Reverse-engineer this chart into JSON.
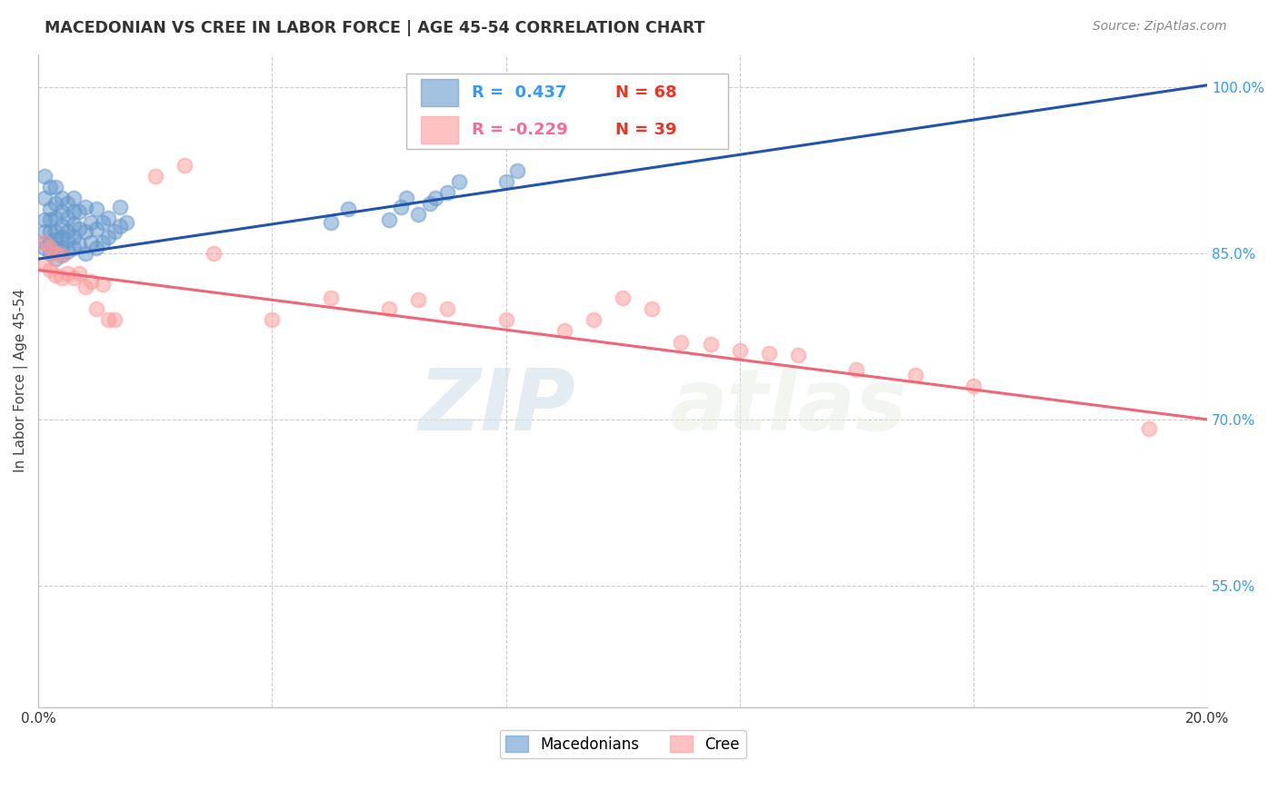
{
  "title": "MACEDONIAN VS CREE IN LABOR FORCE | AGE 45-54 CORRELATION CHART",
  "source": "Source: ZipAtlas.com",
  "ylabel": "In Labor Force | Age 45-54",
  "x_min": 0.0,
  "x_max": 0.2,
  "y_min": 0.44,
  "y_max": 1.03,
  "yticks": [
    0.55,
    0.7,
    0.85,
    1.0
  ],
  "ytick_labels": [
    "55.0%",
    "70.0%",
    "85.0%",
    "100.0%"
  ],
  "xticks": [
    0.0,
    0.04,
    0.08,
    0.12,
    0.16,
    0.2
  ],
  "xtick_labels": [
    "0.0%",
    "",
    "",
    "",
    "",
    "20.0%"
  ],
  "blue_R": 0.437,
  "blue_N": 68,
  "pink_R": -0.229,
  "pink_N": 39,
  "blue_color": "#6699CC",
  "pink_color": "#FF9999",
  "blue_line_color": "#2255AA",
  "pink_line_color": "#EE6677",
  "watermark_zip": "ZIP",
  "watermark_atlas": "atlas",
  "legend_macedonians": "Macedonians",
  "legend_cree": "Cree",
  "blue_scatter_x": [
    0.001,
    0.001,
    0.001,
    0.001,
    0.001,
    0.001,
    0.002,
    0.002,
    0.002,
    0.002,
    0.002,
    0.002,
    0.003,
    0.003,
    0.003,
    0.003,
    0.003,
    0.003,
    0.003,
    0.004,
    0.004,
    0.004,
    0.004,
    0.004,
    0.004,
    0.005,
    0.005,
    0.005,
    0.005,
    0.005,
    0.006,
    0.006,
    0.006,
    0.006,
    0.006,
    0.007,
    0.007,
    0.007,
    0.008,
    0.008,
    0.008,
    0.009,
    0.009,
    0.01,
    0.01,
    0.01,
    0.011,
    0.011,
    0.012,
    0.012,
    0.013,
    0.014,
    0.014,
    0.015,
    0.05,
    0.053,
    0.06,
    0.062,
    0.063,
    0.065,
    0.067,
    0.068,
    0.07,
    0.072,
    0.08,
    0.082,
    0.1,
    0.105
  ],
  "blue_scatter_y": [
    0.855,
    0.86,
    0.87,
    0.88,
    0.9,
    0.92,
    0.85,
    0.86,
    0.87,
    0.88,
    0.89,
    0.91,
    0.845,
    0.855,
    0.862,
    0.87,
    0.882,
    0.895,
    0.91,
    0.848,
    0.856,
    0.865,
    0.875,
    0.888,
    0.9,
    0.852,
    0.862,
    0.87,
    0.882,
    0.895,
    0.855,
    0.865,
    0.876,
    0.888,
    0.9,
    0.858,
    0.872,
    0.888,
    0.85,
    0.87,
    0.892,
    0.86,
    0.878,
    0.855,
    0.872,
    0.89,
    0.86,
    0.878,
    0.865,
    0.882,
    0.87,
    0.875,
    0.892,
    0.878,
    0.878,
    0.89,
    0.88,
    0.892,
    0.9,
    0.885,
    0.895,
    0.9,
    0.905,
    0.915,
    0.915,
    0.925,
    0.968,
    0.98
  ],
  "pink_scatter_x": [
    0.001,
    0.001,
    0.002,
    0.002,
    0.003,
    0.003,
    0.004,
    0.004,
    0.005,
    0.006,
    0.007,
    0.008,
    0.009,
    0.01,
    0.011,
    0.012,
    0.013,
    0.02,
    0.025,
    0.03,
    0.04,
    0.05,
    0.06,
    0.065,
    0.07,
    0.08,
    0.09,
    0.095,
    0.1,
    0.105,
    0.11,
    0.115,
    0.12,
    0.125,
    0.13,
    0.14,
    0.15,
    0.16,
    0.19
  ],
  "pink_scatter_y": [
    0.84,
    0.86,
    0.835,
    0.855,
    0.83,
    0.85,
    0.828,
    0.848,
    0.832,
    0.828,
    0.832,
    0.82,
    0.825,
    0.8,
    0.822,
    0.79,
    0.79,
    0.92,
    0.93,
    0.85,
    0.79,
    0.81,
    0.8,
    0.808,
    0.8,
    0.79,
    0.78,
    0.79,
    0.81,
    0.8,
    0.77,
    0.768,
    0.762,
    0.76,
    0.758,
    0.745,
    0.74,
    0.73,
    0.692
  ]
}
